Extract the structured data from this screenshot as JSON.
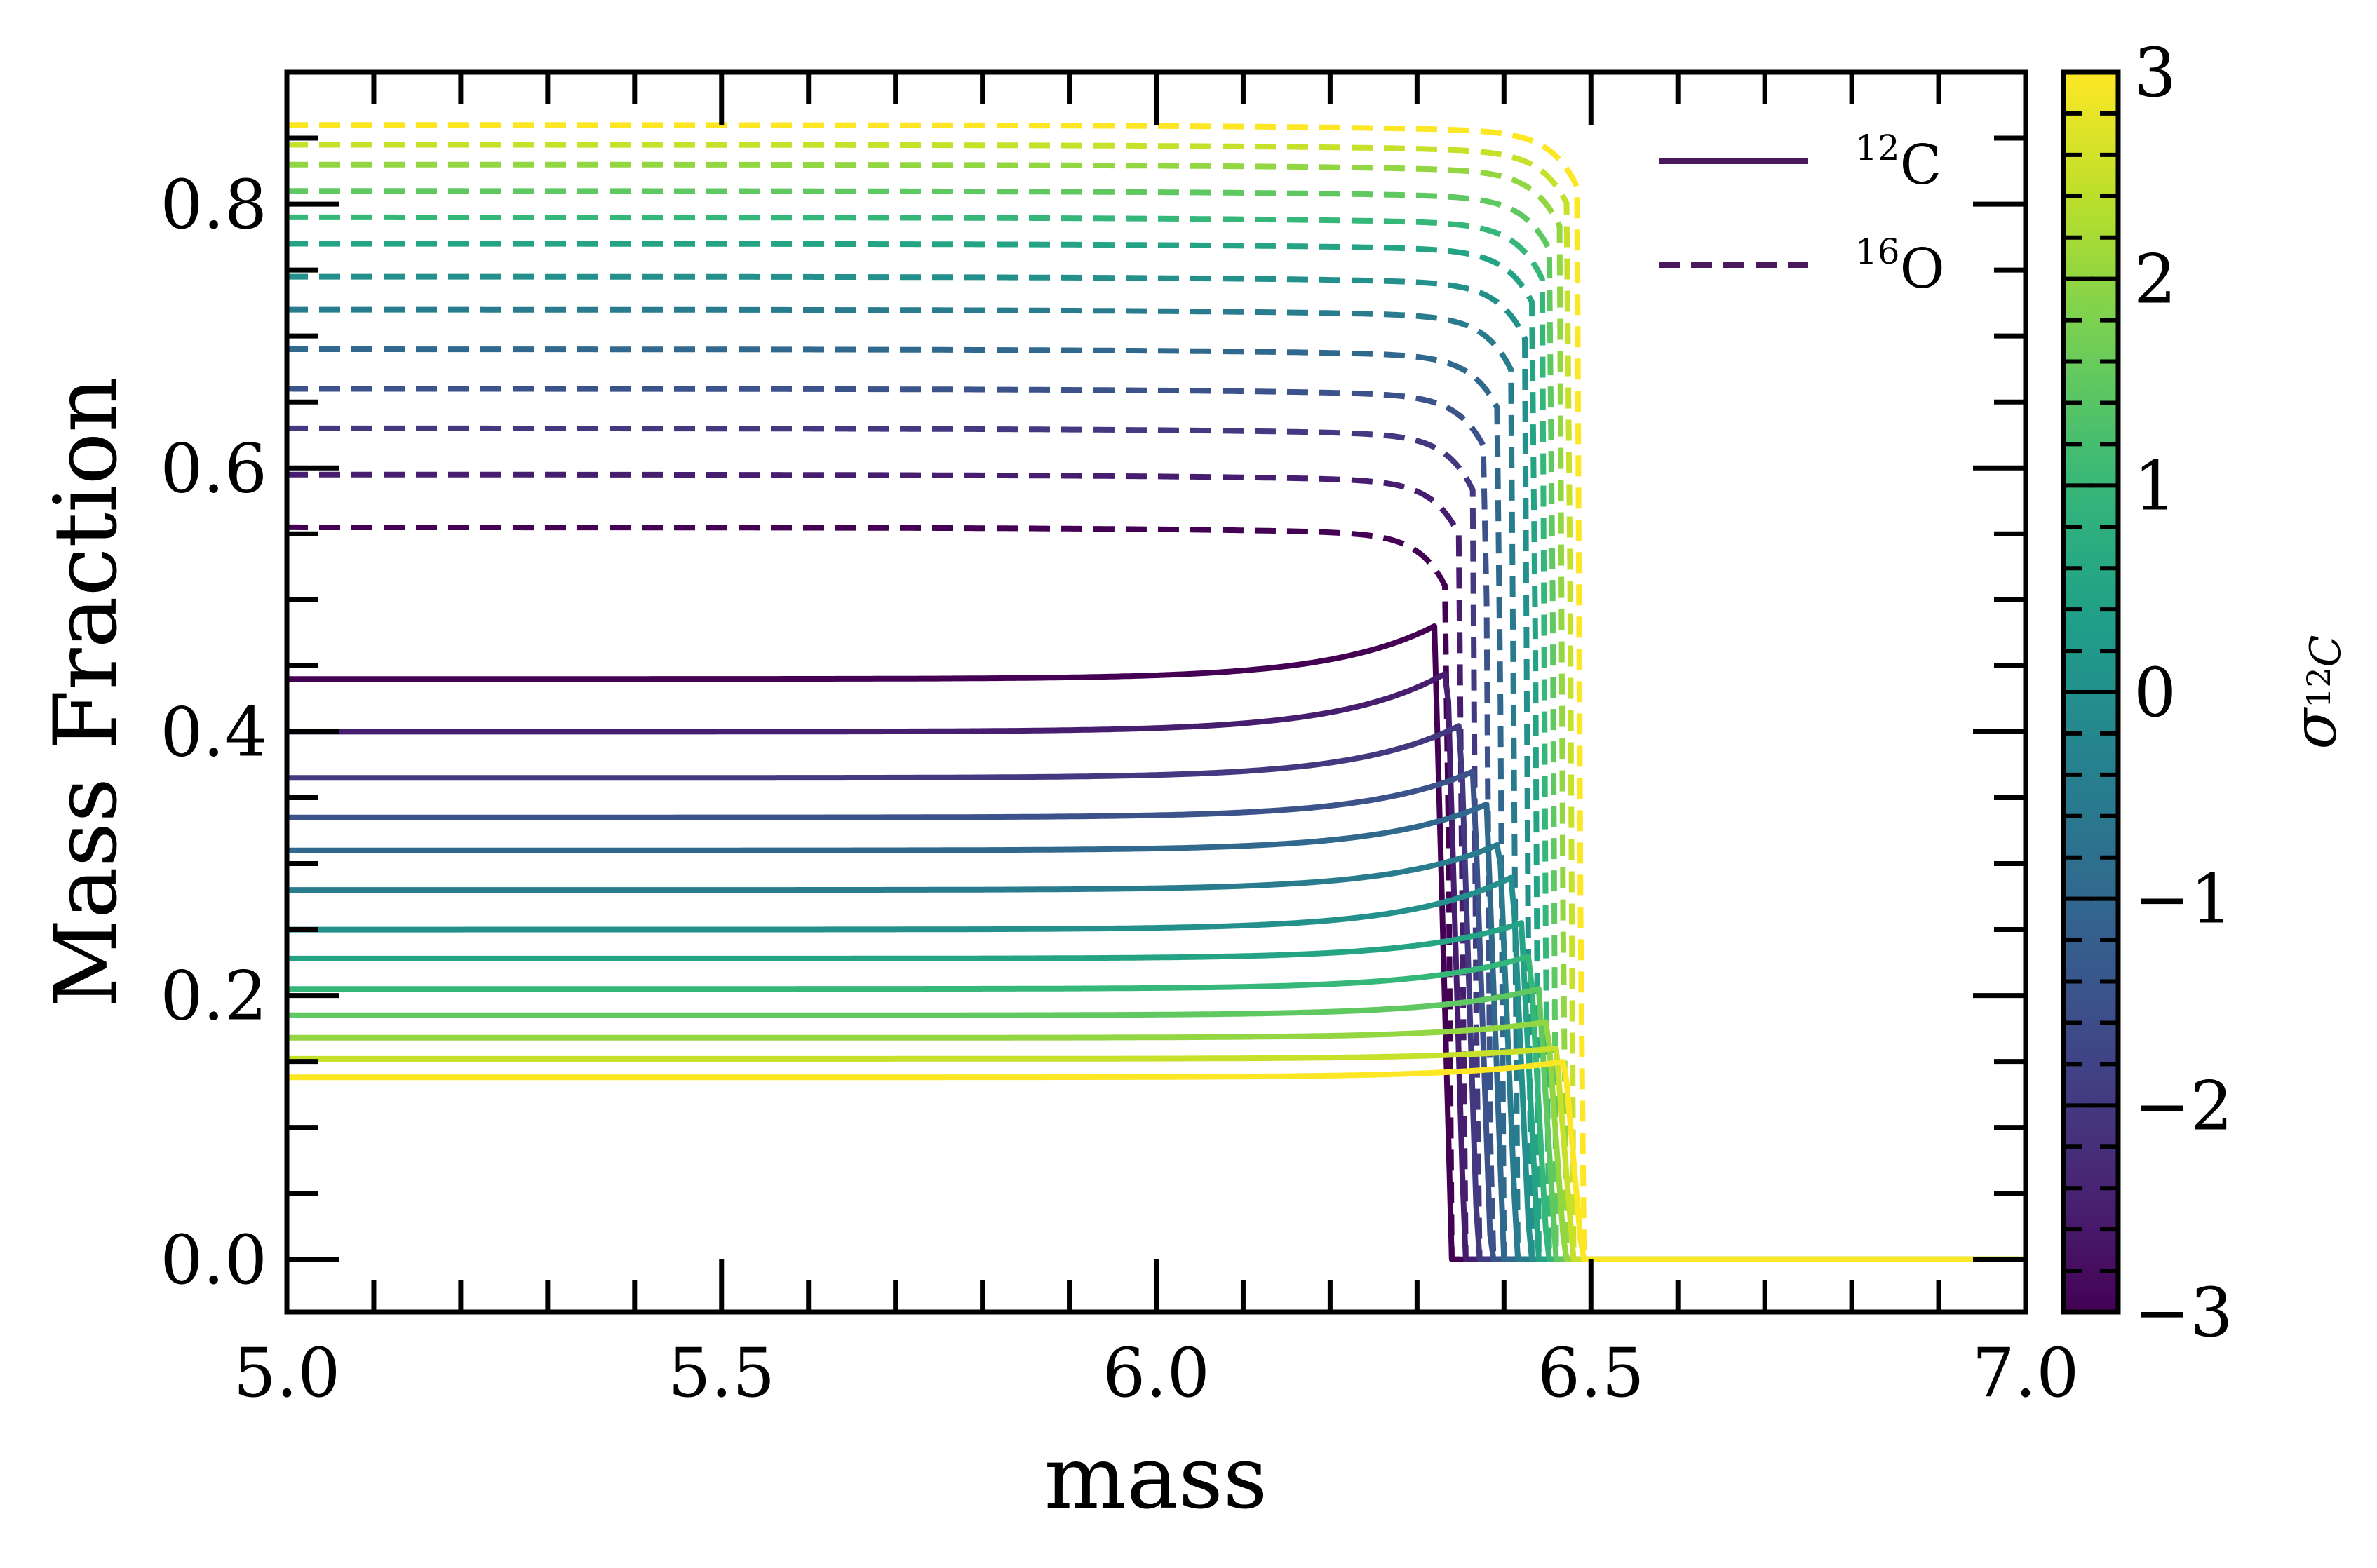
{
  "chart_data": {
    "type": "line",
    "xlabel": "mass",
    "ylabel": "Mass Fraction",
    "xlim": [
      5.0,
      7.0
    ],
    "ylim": [
      -0.04,
      0.9
    ],
    "x_major_ticks": [
      5.0,
      5.5,
      6.0,
      6.5,
      7.0
    ],
    "x_tick_labels": [
      "5.0",
      "5.5",
      "6.0",
      "6.5",
      "7.0"
    ],
    "y_major_ticks": [
      0.0,
      0.2,
      0.4,
      0.6,
      0.8
    ],
    "y_tick_labels": [
      "0.0",
      "0.2",
      "0.4",
      "0.6",
      "0.8"
    ],
    "legend": {
      "placement": "top-right",
      "entries": [
        {
          "label_sup": "12",
          "label": "C",
          "style": "solid"
        },
        {
          "label_sup": "16",
          "label": "O",
          "style": "dashed"
        }
      ]
    },
    "colorbar": {
      "label": "σ",
      "label_sub": "12",
      "label_sub_tail": "C",
      "range": [
        -3,
        3
      ],
      "ticks": [
        -3,
        -2,
        -1,
        0,
        1,
        2,
        3
      ],
      "tick_labels": [
        "−3",
        "−2",
        "−1",
        "0",
        "1",
        "2",
        "3"
      ],
      "colormap": "viridis"
    },
    "sigma_values": [
      -3,
      -2.5,
      -2,
      -1.5,
      -1,
      -0.5,
      0,
      0.5,
      1,
      1.5,
      2,
      2.5,
      3
    ],
    "series_c12": {
      "plateau": [
        0.44,
        0.4,
        0.365,
        0.335,
        0.31,
        0.28,
        0.25,
        0.228,
        0.205,
        0.185,
        0.168,
        0.152,
        0.138
      ],
      "peak": [
        0.48,
        0.445,
        0.405,
        0.37,
        0.345,
        0.315,
        0.29,
        0.255,
        0.23,
        0.205,
        0.18,
        0.16,
        0.15
      ],
      "drop_mass": [
        6.34,
        6.355,
        6.37,
        6.385,
        6.4,
        6.415,
        6.43,
        6.44,
        6.45,
        6.46,
        6.47,
        6.48,
        6.49
      ]
    },
    "series_o16": {
      "plateau": [
        0.555,
        0.595,
        0.63,
        0.66,
        0.69,
        0.72,
        0.745,
        0.77,
        0.79,
        0.81,
        0.83,
        0.845,
        0.86
      ],
      "drop_mass": [
        6.34,
        6.355,
        6.37,
        6.385,
        6.4,
        6.415,
        6.43,
        6.44,
        6.45,
        6.46,
        6.47,
        6.48,
        6.49
      ]
    }
  }
}
